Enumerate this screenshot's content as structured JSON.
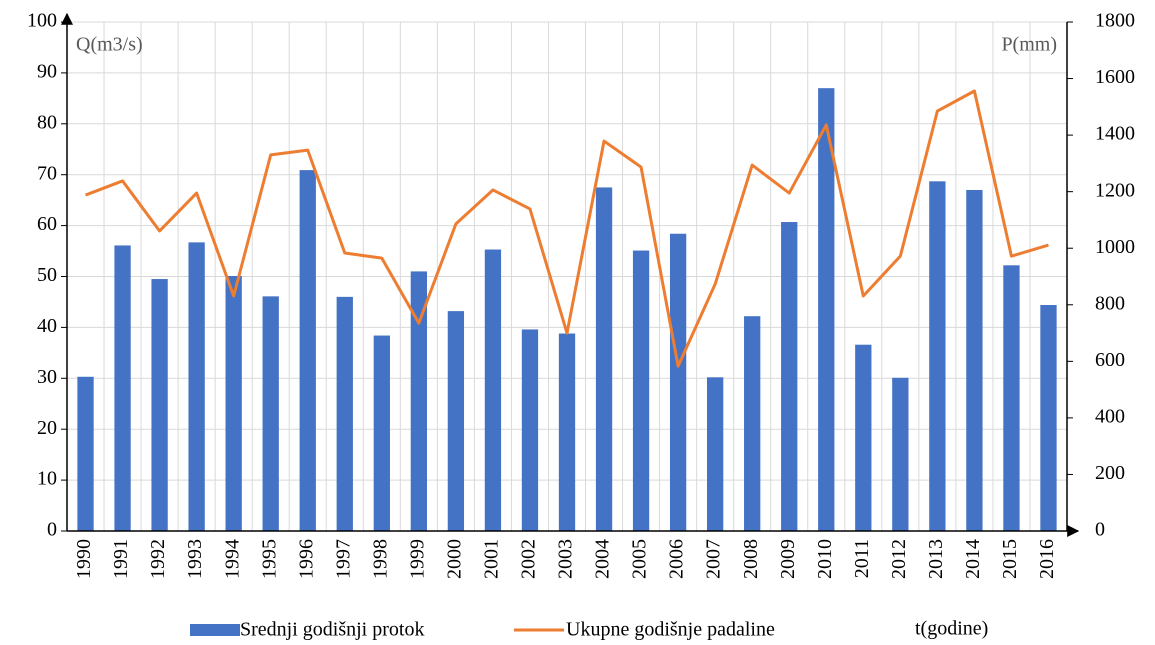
{
  "chart_data": {
    "type": "bar-line",
    "x_label": "t(godine)",
    "y_label": "Q(m3/s)",
    "y2_label": "P(mm)",
    "categories": [
      "1990",
      "1991",
      "1992",
      "1993",
      "1994",
      "1995",
      "1996",
      "1997",
      "1998",
      "1999",
      "2000",
      "2001",
      "2002",
      "2003",
      "2004",
      "2005",
      "2006",
      "2007",
      "2008",
      "2009",
      "2010",
      "2011",
      "2012",
      "2013",
      "2014",
      "2015",
      "2016"
    ],
    "series": [
      {
        "name": "Srednji godišnji protok",
        "type": "bar",
        "color": "#4472c4",
        "values": [
          30.3,
          56.1,
          49.5,
          56.7,
          50.1,
          46.1,
          70.9,
          46.0,
          38.4,
          51.0,
          43.2,
          55.3,
          39.6,
          38.8,
          67.5,
          55.1,
          58.4,
          30.2,
          42.2,
          60.7,
          87.0,
          36.6,
          30.1,
          68.7,
          67.0,
          52.2,
          44.4
        ]
      },
      {
        "name": "Ukupne godišnje padaline",
        "type": "line",
        "axis": "y2",
        "color": "#ed7d31",
        "values": [
          1188,
          1238,
          1061,
          1195,
          831,
          1330,
          1347,
          983,
          965,
          735,
          1086,
          1206,
          1139,
          700,
          1379,
          1287,
          583,
          873,
          1294,
          1195,
          1436,
          831,
          972,
          1485,
          1556,
          972,
          1011
        ]
      }
    ],
    "ylim": [
      0,
      100
    ],
    "yticks": [
      0,
      10,
      20,
      30,
      40,
      50,
      60,
      70,
      80,
      90,
      100
    ],
    "y2lim": [
      0,
      1800
    ],
    "y2ticks": [
      0,
      200,
      400,
      600,
      800,
      1000,
      1200,
      1400,
      1600,
      1800
    ],
    "grid": true,
    "legend": "bottom"
  }
}
